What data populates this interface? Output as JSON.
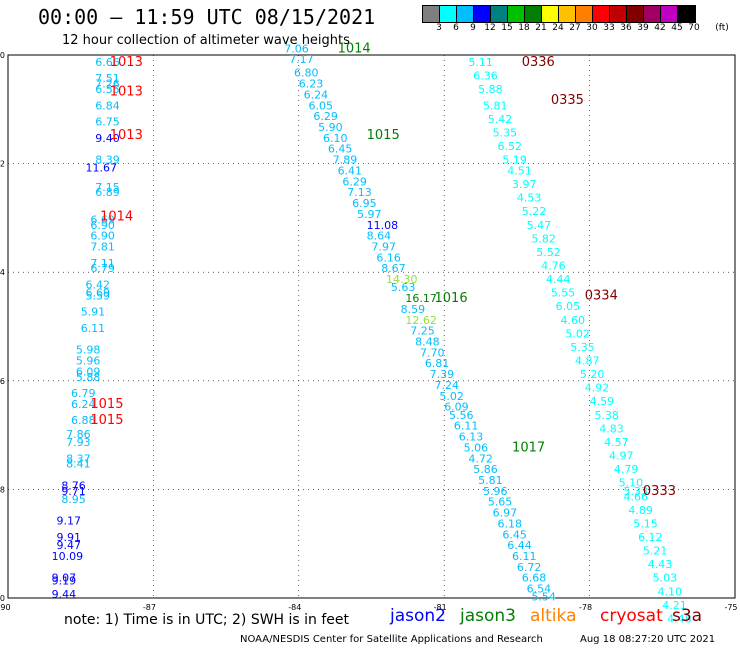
{
  "header": {
    "title": "00:00 – 11:59 UTC 08/15/2021",
    "subtitle": "12 hour collection of altimeter wave heights"
  },
  "legend": {
    "colors": [
      "#7f7f7f",
      "#00ffff",
      "#00bfff",
      "#0000ff",
      "#008080",
      "#00c000",
      "#008000",
      "#ffff00",
      "#ffc000",
      "#ff8000",
      "#ff0000",
      "#c00000",
      "#800000",
      "#a00060",
      "#c000c0",
      "#000000"
    ],
    "labels": [
      "3",
      "6",
      "9",
      "12",
      "15",
      "18",
      "21",
      "24",
      "27",
      "30",
      "33",
      "36",
      "39",
      "42",
      "45",
      "70"
    ],
    "unit": "(ft)"
  },
  "chart_data": {
    "type": "scatter",
    "xlim": [
      -90,
      -75
    ],
    "ylim": [
      -30,
      -20
    ],
    "x_ticks": [
      "-90",
      "-87",
      "-84",
      "-81",
      "-78",
      "-75"
    ],
    "y_ticks": [
      "-20",
      "-22",
      "-24",
      "-26",
      "-28",
      "-30"
    ],
    "labels": [
      {
        "lon": -88.2,
        "lat": -20.2,
        "text": "6.66",
        "color": "#00bfff"
      },
      {
        "lon": -88.2,
        "lat": -20.5,
        "text": "7.51",
        "color": "#00bfff"
      },
      {
        "lon": -88.2,
        "lat": -20.6,
        "text": "7.26",
        "color": "#00bfff"
      },
      {
        "lon": -88.2,
        "lat": -20.7,
        "text": "6.55",
        "color": "#00bfff"
      },
      {
        "lon": -88.2,
        "lat": -21.0,
        "text": "6.84",
        "color": "#00bfff"
      },
      {
        "lon": -88.2,
        "lat": -21.3,
        "text": "6.75",
        "color": "#00bfff"
      },
      {
        "lon": -88.2,
        "lat": -21.6,
        "text": "9.40",
        "color": "#0000ff"
      },
      {
        "lon": -88.2,
        "lat": -22.0,
        "text": "8.39",
        "color": "#00bfff"
      },
      {
        "lon": -88.4,
        "lat": -22.15,
        "text": "11.67",
        "color": "#0000ff"
      },
      {
        "lon": -88.2,
        "lat": -22.5,
        "text": "7.15",
        "color": "#00bfff"
      },
      {
        "lon": -88.2,
        "lat": -22.6,
        "text": "6.89",
        "color": "#00bfff"
      },
      {
        "lon": -88.3,
        "lat": -23.1,
        "text": "6.69",
        "color": "#00bfff"
      },
      {
        "lon": -88.3,
        "lat": -23.2,
        "text": "6.90",
        "color": "#00bfff"
      },
      {
        "lon": -88.3,
        "lat": -23.4,
        "text": "6.90",
        "color": "#00bfff"
      },
      {
        "lon": -88.3,
        "lat": -23.6,
        "text": "7.81",
        "color": "#00bfff"
      },
      {
        "lon": -88.3,
        "lat": -23.9,
        "text": "7.11",
        "color": "#00bfff"
      },
      {
        "lon": -88.3,
        "lat": -24.0,
        "text": "6.79",
        "color": "#00bfff"
      },
      {
        "lon": -88.4,
        "lat": -24.3,
        "text": "6.42",
        "color": "#00bfff"
      },
      {
        "lon": -88.4,
        "lat": -24.45,
        "text": "6.69",
        "color": "#00bfff"
      },
      {
        "lon": -88.4,
        "lat": -24.5,
        "text": "5.59",
        "color": "#00bfff"
      },
      {
        "lon": -88.5,
        "lat": -24.8,
        "text": "5.91",
        "color": "#00bfff"
      },
      {
        "lon": -88.5,
        "lat": -25.1,
        "text": "6.11",
        "color": "#00bfff"
      },
      {
        "lon": -88.6,
        "lat": -25.5,
        "text": "5.98",
        "color": "#00bfff"
      },
      {
        "lon": -88.6,
        "lat": -25.7,
        "text": "5.96",
        "color": "#00bfff"
      },
      {
        "lon": -88.6,
        "lat": -25.9,
        "text": "6.09",
        "color": "#00bfff"
      },
      {
        "lon": -88.6,
        "lat": -26.0,
        "text": "5.88",
        "color": "#00bfff"
      },
      {
        "lon": -88.7,
        "lat": -26.3,
        "text": "6.79",
        "color": "#00bfff"
      },
      {
        "lon": -88.7,
        "lat": -26.5,
        "text": "6.24",
        "color": "#00bfff"
      },
      {
        "lon": -88.7,
        "lat": -26.8,
        "text": "6.88",
        "color": "#00bfff"
      },
      {
        "lon": -88.8,
        "lat": -27.05,
        "text": "7.86",
        "color": "#00bfff"
      },
      {
        "lon": -88.8,
        "lat": -27.2,
        "text": "7.93",
        "color": "#00bfff"
      },
      {
        "lon": -88.8,
        "lat": -27.5,
        "text": "8.37",
        "color": "#00bfff"
      },
      {
        "lon": -88.8,
        "lat": -27.6,
        "text": "8.41",
        "color": "#00bfff"
      },
      {
        "lon": -88.9,
        "lat": -28.0,
        "text": "8.76",
        "color": "#0000ff"
      },
      {
        "lon": -88.9,
        "lat": -28.1,
        "text": "9.71",
        "color": "#0000ff"
      },
      {
        "lon": -88.9,
        "lat": -28.25,
        "text": "8.95",
        "color": "#00bfff"
      },
      {
        "lon": -89.0,
        "lat": -28.65,
        "text": "9.17",
        "color": "#0000ff"
      },
      {
        "lon": -89.0,
        "lat": -28.95,
        "text": "9.91",
        "color": "#0000ff"
      },
      {
        "lon": -89.0,
        "lat": -29.1,
        "text": "9.47",
        "color": "#0000ff"
      },
      {
        "lon": -89.1,
        "lat": -29.3,
        "text": "10.09",
        "color": "#0000ff"
      },
      {
        "lon": -89.1,
        "lat": -29.7,
        "text": "9.07",
        "color": "#0000ff"
      },
      {
        "lon": -89.1,
        "lat": -29.75,
        "text": "9.19",
        "color": "#0000ff"
      },
      {
        "lon": -89.1,
        "lat": -30.0,
        "text": "9.44",
        "color": "#0000ff"
      },
      {
        "lon": -84.3,
        "lat": -19.95,
        "text": "7.06",
        "color": "#00bfff"
      },
      {
        "lon": -84.2,
        "lat": -20.15,
        "text": "7.17",
        "color": "#00bfff"
      },
      {
        "lon": -84.1,
        "lat": -20.4,
        "text": "6.80",
        "color": "#00bfff"
      },
      {
        "lon": -84.0,
        "lat": -20.6,
        "text": "6.23",
        "color": "#00bfff"
      },
      {
        "lon": -83.9,
        "lat": -20.8,
        "text": "6.24",
        "color": "#00bfff"
      },
      {
        "lon": -83.8,
        "lat": -21.0,
        "text": "6.05",
        "color": "#00bfff"
      },
      {
        "lon": -83.7,
        "lat": -21.2,
        "text": "6.29",
        "color": "#00bfff"
      },
      {
        "lon": -83.6,
        "lat": -21.4,
        "text": "5.90",
        "color": "#00bfff"
      },
      {
        "lon": -83.5,
        "lat": -21.6,
        "text": "6.10",
        "color": "#00bfff"
      },
      {
        "lon": -83.4,
        "lat": -21.8,
        "text": "6.45",
        "color": "#00bfff"
      },
      {
        "lon": -83.3,
        "lat": -22.0,
        "text": "7.89",
        "color": "#00bfff"
      },
      {
        "lon": -83.2,
        "lat": -22.2,
        "text": "6.41",
        "color": "#00bfff"
      },
      {
        "lon": -83.1,
        "lat": -22.4,
        "text": "6.29",
        "color": "#00bfff"
      },
      {
        "lon": -83.0,
        "lat": -22.6,
        "text": "7.13",
        "color": "#00bfff"
      },
      {
        "lon": -82.9,
        "lat": -22.8,
        "text": "6.95",
        "color": "#00bfff"
      },
      {
        "lon": -82.8,
        "lat": -23.0,
        "text": "5.97",
        "color": "#00bfff"
      },
      {
        "lon": -82.6,
        "lat": -23.2,
        "text": "11.08",
        "color": "#0000ff"
      },
      {
        "lon": -82.6,
        "lat": -23.4,
        "text": "8.64",
        "color": "#00bfff"
      },
      {
        "lon": -82.5,
        "lat": -23.6,
        "text": "7.97",
        "color": "#00bfff"
      },
      {
        "lon": -82.4,
        "lat": -23.8,
        "text": "6.16",
        "color": "#00bfff"
      },
      {
        "lon": -82.3,
        "lat": -24.0,
        "text": "8.67",
        "color": "#00bfff"
      },
      {
        "lon": -82.2,
        "lat": -24.2,
        "text": "14.30",
        "color": "#90e040"
      },
      {
        "lon": -82.1,
        "lat": -24.35,
        "text": "5.63",
        "color": "#00bfff"
      },
      {
        "lon": -81.8,
        "lat": -24.55,
        "text": "16.17",
        "color": "#008000"
      },
      {
        "lon": -81.9,
        "lat": -24.75,
        "text": "8.59",
        "color": "#00bfff"
      },
      {
        "lon": -81.8,
        "lat": -24.95,
        "text": "12.62",
        "color": "#90e040"
      },
      {
        "lon": -81.7,
        "lat": -25.15,
        "text": "7.25",
        "color": "#00bfff"
      },
      {
        "lon": -81.6,
        "lat": -25.35,
        "text": "8.48",
        "color": "#00bfff"
      },
      {
        "lon": -81.5,
        "lat": -25.55,
        "text": "7.70",
        "color": "#00bfff"
      },
      {
        "lon": -81.4,
        "lat": -25.75,
        "text": "6.81",
        "color": "#00bfff"
      },
      {
        "lon": -81.3,
        "lat": -25.95,
        "text": "7.39",
        "color": "#00bfff"
      },
      {
        "lon": -81.2,
        "lat": -26.15,
        "text": "7.24",
        "color": "#00bfff"
      },
      {
        "lon": -81.1,
        "lat": -26.35,
        "text": "5.02",
        "color": "#00bfff"
      },
      {
        "lon": -81.0,
        "lat": -26.55,
        "text": "6.09",
        "color": "#00bfff"
      },
      {
        "lon": -80.9,
        "lat": -26.7,
        "text": "5.56",
        "color": "#00bfff"
      },
      {
        "lon": -80.8,
        "lat": -26.9,
        "text": "6.11",
        "color": "#00bfff"
      },
      {
        "lon": -80.7,
        "lat": -27.1,
        "text": "6.13",
        "color": "#00bfff"
      },
      {
        "lon": -80.6,
        "lat": -27.3,
        "text": "5.06",
        "color": "#00bfff"
      },
      {
        "lon": -80.5,
        "lat": -27.5,
        "text": "4.72",
        "color": "#00bfff"
      },
      {
        "lon": -80.4,
        "lat": -27.7,
        "text": "5.86",
        "color": "#00bfff"
      },
      {
        "lon": -80.3,
        "lat": -27.9,
        "text": "5.81",
        "color": "#00bfff"
      },
      {
        "lon": -80.2,
        "lat": -28.1,
        "text": "5.96",
        "color": "#00bfff"
      },
      {
        "lon": -80.1,
        "lat": -28.3,
        "text": "5.65",
        "color": "#00bfff"
      },
      {
        "lon": -80.0,
        "lat": -28.5,
        "text": "6.97",
        "color": "#00bfff"
      },
      {
        "lon": -79.9,
        "lat": -28.7,
        "text": "6.18",
        "color": "#00bfff"
      },
      {
        "lon": -79.8,
        "lat": -28.9,
        "text": "6.45",
        "color": "#00bfff"
      },
      {
        "lon": -79.7,
        "lat": -29.1,
        "text": "6.44",
        "color": "#00bfff"
      },
      {
        "lon": -79.6,
        "lat": -29.3,
        "text": "6.11",
        "color": "#00bfff"
      },
      {
        "lon": -79.5,
        "lat": -29.5,
        "text": "6.72",
        "color": "#00bfff"
      },
      {
        "lon": -79.4,
        "lat": -29.7,
        "text": "6.68",
        "color": "#00bfff"
      },
      {
        "lon": -79.3,
        "lat": -29.9,
        "text": "6.54",
        "color": "#00bfff"
      },
      {
        "lon": -79.2,
        "lat": -30.05,
        "text": "5.54",
        "color": "#00bfff"
      },
      {
        "lon": -80.5,
        "lat": -20.2,
        "text": "5.11",
        "color": "#00ffff"
      },
      {
        "lon": -80.4,
        "lat": -20.45,
        "text": "6.36",
        "color": "#00ffff"
      },
      {
        "lon": -80.3,
        "lat": -20.7,
        "text": "5.88",
        "color": "#00ffff"
      },
      {
        "lon": -80.2,
        "lat": -21.0,
        "text": "5.81",
        "color": "#00ffff"
      },
      {
        "lon": -80.1,
        "lat": -21.25,
        "text": "5.42",
        "color": "#00ffff"
      },
      {
        "lon": -80.0,
        "lat": -21.5,
        "text": "5.35",
        "color": "#00ffff"
      },
      {
        "lon": -79.9,
        "lat": -21.75,
        "text": "6.52",
        "color": "#00ffff"
      },
      {
        "lon": -79.8,
        "lat": -22.0,
        "text": "5.19",
        "color": "#00ffff"
      },
      {
        "lon": -79.7,
        "lat": -22.2,
        "text": "4.51",
        "color": "#00ffff"
      },
      {
        "lon": -79.6,
        "lat": -22.45,
        "text": "3.97",
        "color": "#00ffff"
      },
      {
        "lon": -79.5,
        "lat": -22.7,
        "text": "4.53",
        "color": "#00ffff"
      },
      {
        "lon": -79.4,
        "lat": -22.95,
        "text": "5.22",
        "color": "#00ffff"
      },
      {
        "lon": -79.3,
        "lat": -23.2,
        "text": "5.47",
        "color": "#00ffff"
      },
      {
        "lon": -79.2,
        "lat": -23.45,
        "text": "5.82",
        "color": "#00ffff"
      },
      {
        "lon": -79.1,
        "lat": -23.7,
        "text": "5.52",
        "color": "#00ffff"
      },
      {
        "lon": -79.0,
        "lat": -23.95,
        "text": "4.76",
        "color": "#00ffff"
      },
      {
        "lon": -78.9,
        "lat": -24.2,
        "text": "4.44",
        "color": "#00ffff"
      },
      {
        "lon": -78.8,
        "lat": -24.45,
        "text": "5.55",
        "color": "#00ffff"
      },
      {
        "lon": -78.7,
        "lat": -24.7,
        "text": "6.05",
        "color": "#00ffff"
      },
      {
        "lon": -78.6,
        "lat": -24.95,
        "text": "4.60",
        "color": "#00ffff"
      },
      {
        "lon": -78.5,
        "lat": -25.2,
        "text": "5.02",
        "color": "#00ffff"
      },
      {
        "lon": -78.4,
        "lat": -25.45,
        "text": "5.35",
        "color": "#00ffff"
      },
      {
        "lon": -78.3,
        "lat": -25.7,
        "text": "4.87",
        "color": "#00ffff"
      },
      {
        "lon": -78.2,
        "lat": -25.95,
        "text": "5.20",
        "color": "#00ffff"
      },
      {
        "lon": -78.1,
        "lat": -26.2,
        "text": "4.92",
        "color": "#00ffff"
      },
      {
        "lon": -78.0,
        "lat": -26.45,
        "text": "4.59",
        "color": "#00ffff"
      },
      {
        "lon": -77.9,
        "lat": -26.7,
        "text": "5.38",
        "color": "#00ffff"
      },
      {
        "lon": -77.8,
        "lat": -26.95,
        "text": "4.83",
        "color": "#00ffff"
      },
      {
        "lon": -77.7,
        "lat": -27.2,
        "text": "4.57",
        "color": "#00ffff"
      },
      {
        "lon": -77.6,
        "lat": -27.45,
        "text": "4.97",
        "color": "#00ffff"
      },
      {
        "lon": -77.5,
        "lat": -27.7,
        "text": "4.79",
        "color": "#00ffff"
      },
      {
        "lon": -77.4,
        "lat": -27.95,
        "text": "5.10",
        "color": "#00ffff"
      },
      {
        "lon": -77.3,
        "lat": -28.1,
        "text": "5.33",
        "color": "#00ffff"
      },
      {
        "lon": -77.3,
        "lat": -28.2,
        "text": "4.66",
        "color": "#00ffff"
      },
      {
        "lon": -77.2,
        "lat": -28.45,
        "text": "4.89",
        "color": "#00ffff"
      },
      {
        "lon": -77.1,
        "lat": -28.7,
        "text": "5.15",
        "color": "#00ffff"
      },
      {
        "lon": -77.0,
        "lat": -28.95,
        "text": "6.12",
        "color": "#00ffff"
      },
      {
        "lon": -76.9,
        "lat": -29.2,
        "text": "5.21",
        "color": "#00ffff"
      },
      {
        "lon": -76.8,
        "lat": -29.45,
        "text": "4.43",
        "color": "#00ffff"
      },
      {
        "lon": -76.7,
        "lat": -29.7,
        "text": "5.03",
        "color": "#00ffff"
      },
      {
        "lon": -76.6,
        "lat": -29.95,
        "text": "4.10",
        "color": "#00ffff"
      },
      {
        "lon": -76.5,
        "lat": -30.2,
        "text": "4.21",
        "color": "#00ffff"
      },
      {
        "lon": -76.4,
        "lat": -30.45,
        "text": "4.48",
        "color": "#00ffff"
      }
    ],
    "time_labels": [
      {
        "lon": -87.9,
        "lat": -20.2,
        "text": "1013",
        "color": "#ff0000"
      },
      {
        "lon": -87.9,
        "lat": -20.75,
        "text": "1013",
        "color": "#ff0000"
      },
      {
        "lon": -87.9,
        "lat": -21.55,
        "text": "1013",
        "color": "#ff0000"
      },
      {
        "lon": -88.1,
        "lat": -23.05,
        "text": "1014",
        "color": "#ff0000"
      },
      {
        "lon": -88.3,
        "lat": -26.5,
        "text": "1015",
        "color": "#ff0000"
      },
      {
        "lon": -88.3,
        "lat": -26.8,
        "text": "1015",
        "color": "#ff0000"
      },
      {
        "lon": -83.2,
        "lat": -19.95,
        "text": "1014",
        "color": "#008000"
      },
      {
        "lon": -82.6,
        "lat": -21.55,
        "text": "1015",
        "color": "#008000"
      },
      {
        "lon": -81.2,
        "lat": -24.55,
        "text": "1016",
        "color": "#008000"
      },
      {
        "lon": -79.6,
        "lat": -27.3,
        "text": "1017",
        "color": "#008000"
      },
      {
        "lon": -79.4,
        "lat": -20.2,
        "text": "0336",
        "color": "#800000"
      },
      {
        "lon": -78.8,
        "lat": -20.9,
        "text": "0335",
        "color": "#800000"
      },
      {
        "lon": -78.1,
        "lat": -24.5,
        "text": "0334",
        "color": "#800000"
      },
      {
        "lon": -76.9,
        "lat": -28.1,
        "text": "0333",
        "color": "#800000"
      }
    ]
  },
  "footer": {
    "note": "note:  1) Time is in UTC;  2) SWH is in feet",
    "satellites": [
      {
        "name": "jason2",
        "color": "#0000ff"
      },
      {
        "name": "jason3",
        "color": "#008000"
      },
      {
        "name": "altika",
        "color": "#ff8000"
      },
      {
        "name": "cryosat",
        "color": "#ff0000"
      },
      {
        "name": "s3a",
        "color": "#800000"
      }
    ],
    "credit": "NOAA/NESDIS Center for Satellite Applications and Research",
    "timestamp": "Aug 18 08:27:20 UTC 2021"
  }
}
